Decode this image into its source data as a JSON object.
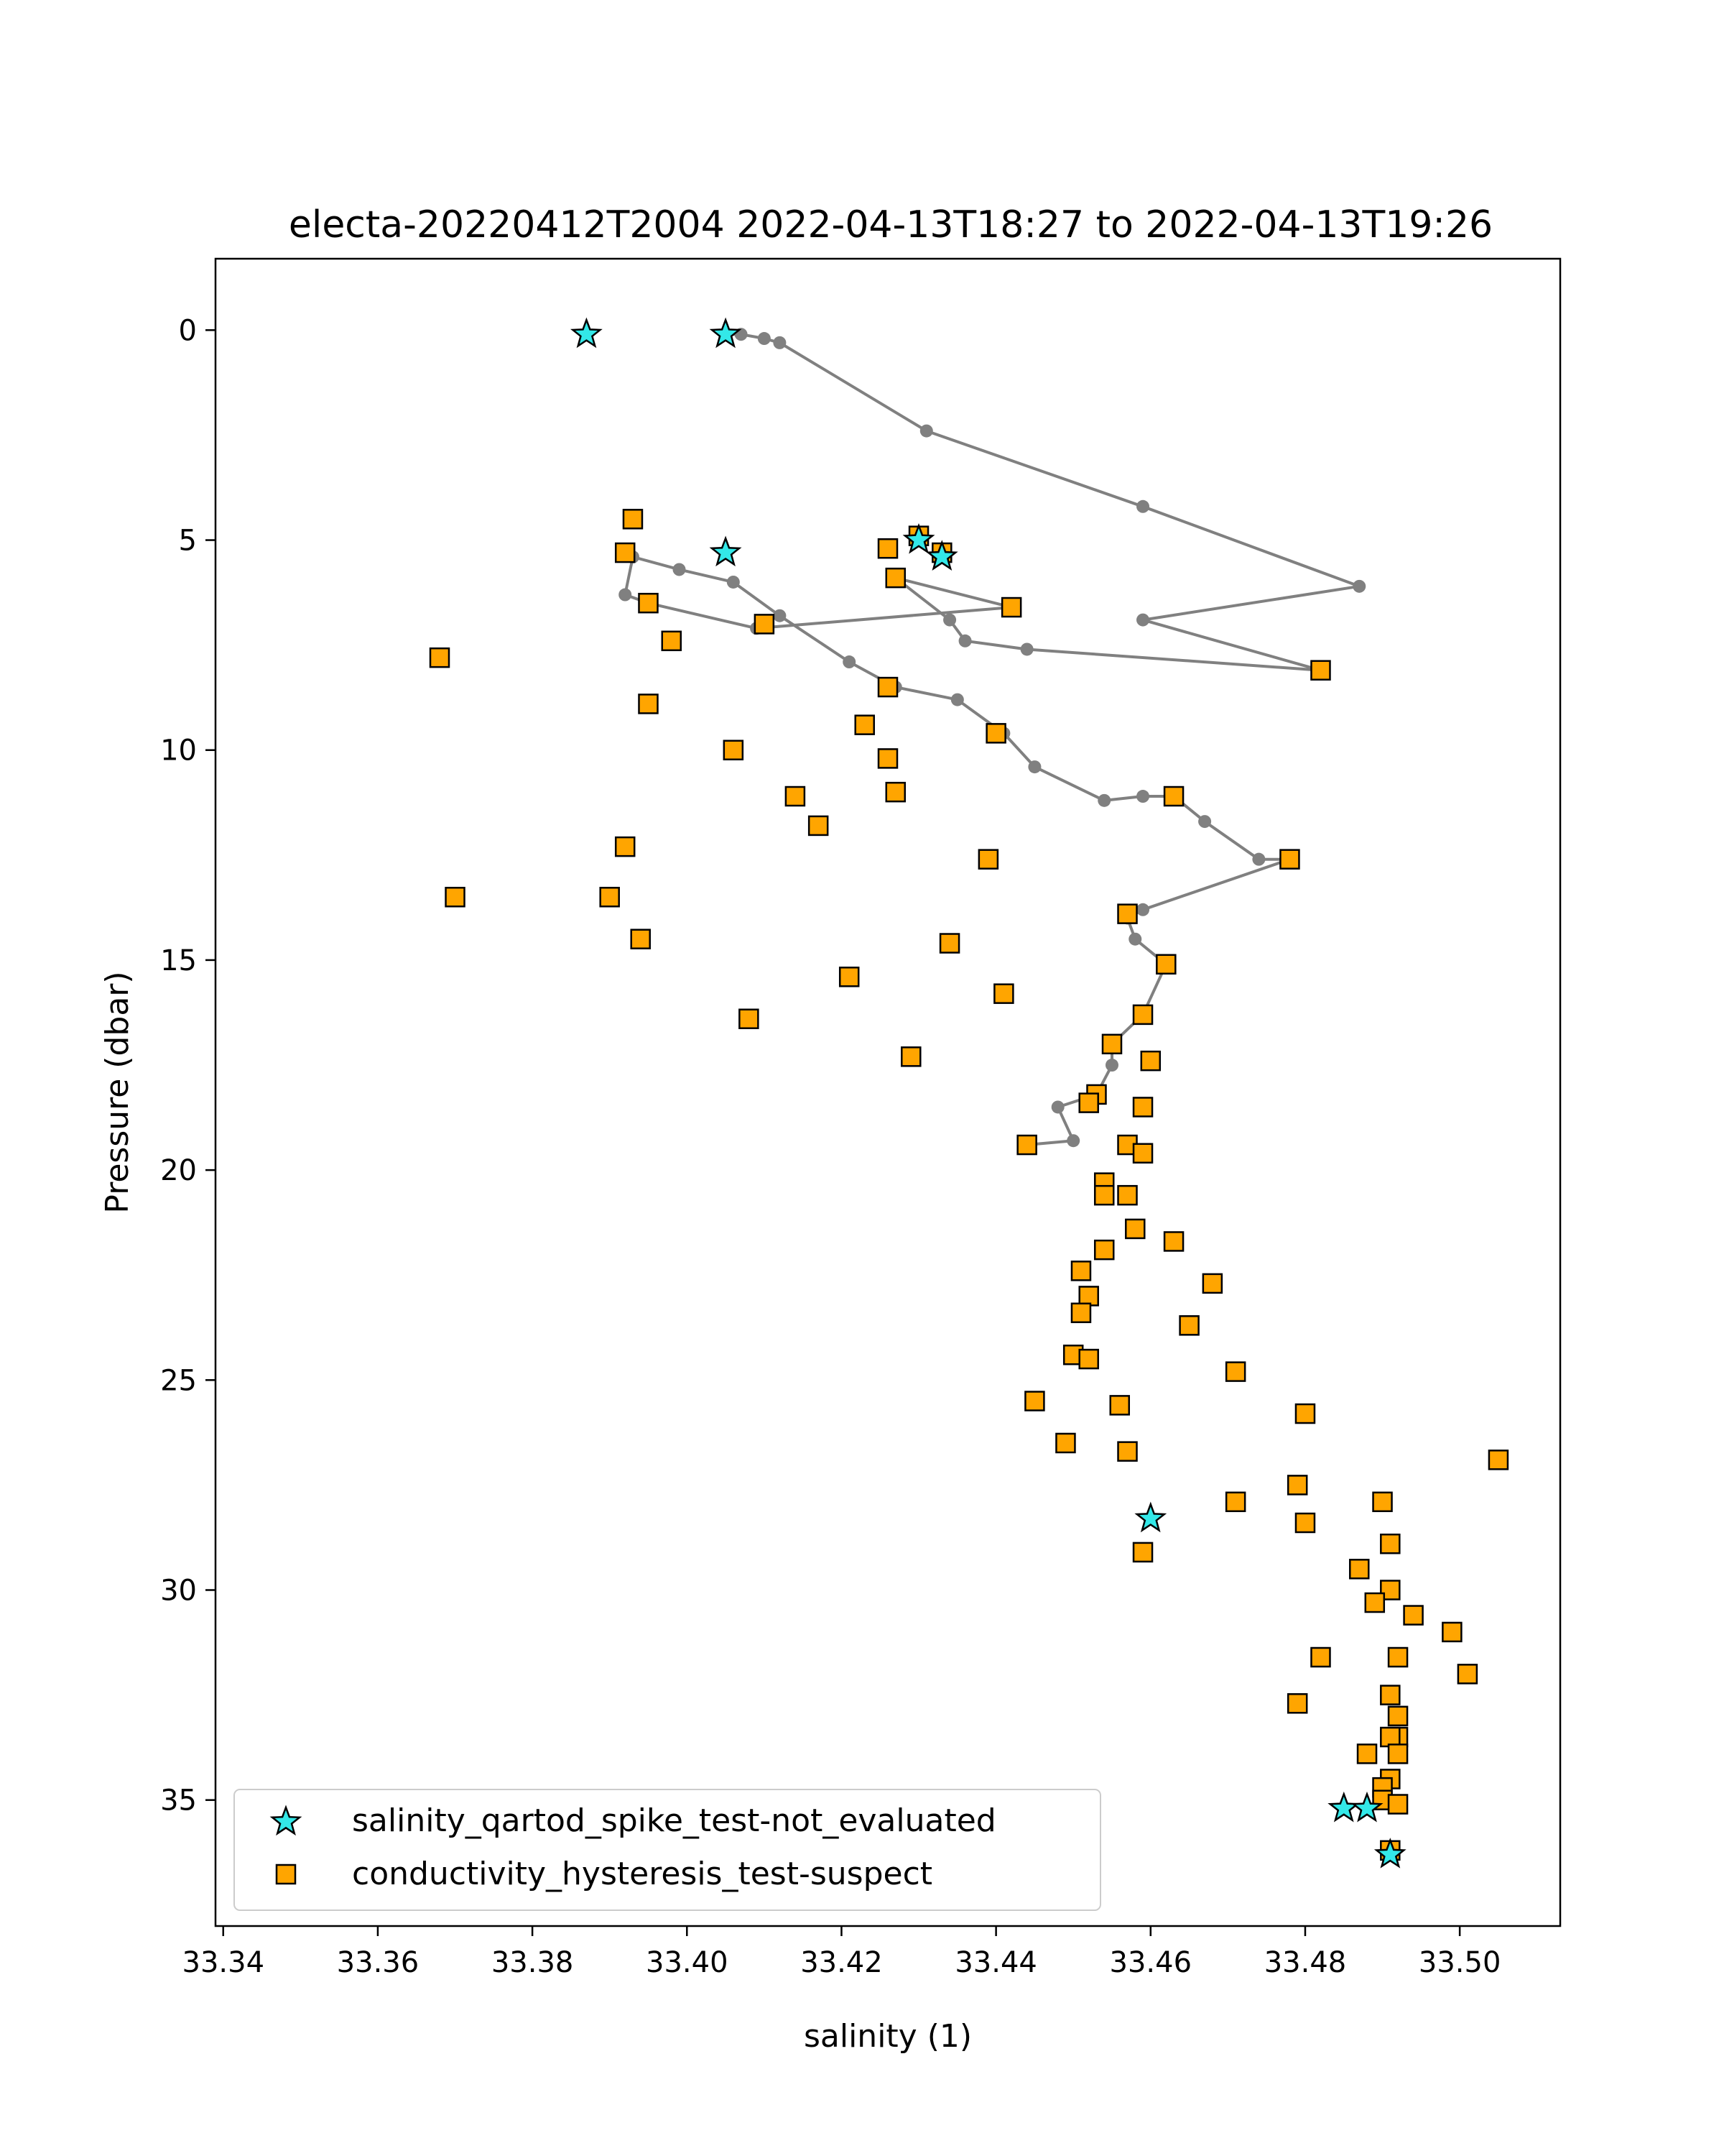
{
  "chart_data": {
    "type": "line",
    "title": "electa-20220412T2004 2022-04-13T18:27 to 2022-04-13T19:26",
    "xlabel": "salinity (1)",
    "ylabel": "Pressure (dbar)",
    "xlim": [
      33.339,
      33.513
    ],
    "ylim": [
      38.0,
      -1.7
    ],
    "y_inverted": true,
    "x_ticks": [
      "33.34",
      "33.36",
      "33.38",
      "33.40",
      "33.42",
      "33.44",
      "33.46",
      "33.48",
      "33.50"
    ],
    "x_tick_values": [
      33.34,
      33.36,
      33.38,
      33.4,
      33.42,
      33.44,
      33.46,
      33.48,
      33.5
    ],
    "y_ticks": [
      "0",
      "5",
      "10",
      "15",
      "20",
      "25",
      "30",
      "35"
    ],
    "y_tick_values": [
      0,
      5,
      10,
      15,
      20,
      25,
      30,
      35
    ],
    "grid": false,
    "legend_position": "lower-left",
    "colors": {
      "profile_line": "#808080",
      "star_marker": "#33e8e8",
      "square_marker": "#ffa500",
      "marker_edge": "#000000"
    },
    "profile": [
      [
        33.405,
        0.1
      ],
      [
        33.407,
        0.1
      ],
      [
        33.41,
        0.2
      ],
      [
        33.412,
        0.3
      ],
      [
        33.431,
        2.4
      ],
      [
        33.459,
        4.2
      ],
      [
        33.487,
        6.1
      ],
      [
        33.459,
        6.9
      ],
      [
        33.482,
        8.1
      ],
      [
        33.444,
        7.6
      ],
      [
        33.436,
        7.4
      ],
      [
        33.434,
        6.9
      ],
      [
        33.427,
        5.9
      ],
      [
        33.442,
        6.6
      ],
      [
        33.409,
        7.1
      ],
      [
        33.395,
        6.5
      ],
      [
        33.392,
        6.3
      ],
      [
        33.393,
        5.4
      ],
      [
        33.399,
        5.7
      ],
      [
        33.406,
        6.0
      ],
      [
        33.412,
        6.8
      ],
      [
        33.421,
        7.9
      ],
      [
        33.427,
        8.5
      ],
      [
        33.435,
        8.8
      ],
      [
        33.441,
        9.6
      ],
      [
        33.445,
        10.4
      ],
      [
        33.454,
        11.2
      ],
      [
        33.459,
        11.1
      ],
      [
        33.463,
        11.1
      ],
      [
        33.467,
        11.7
      ],
      [
        33.474,
        12.6
      ],
      [
        33.478,
        12.6
      ],
      [
        33.459,
        13.8
      ],
      [
        33.457,
        14.0
      ],
      [
        33.458,
        14.5
      ],
      [
        33.462,
        15.1
      ],
      [
        33.459,
        16.3
      ],
      [
        33.455,
        17.0
      ],
      [
        33.455,
        17.5
      ],
      [
        33.453,
        18.2
      ],
      [
        33.448,
        18.5
      ],
      [
        33.45,
        19.3
      ],
      [
        33.444,
        19.4
      ]
    ],
    "stars": [
      [
        33.387,
        0.1
      ],
      [
        33.405,
        0.1
      ],
      [
        33.43,
        5.0
      ],
      [
        33.433,
        5.4
      ],
      [
        33.405,
        5.3
      ],
      [
        33.46,
        28.3
      ],
      [
        33.485,
        35.2
      ],
      [
        33.488,
        35.2
      ],
      [
        33.491,
        36.3
      ]
    ],
    "squares": [
      [
        33.393,
        4.5
      ],
      [
        33.43,
        4.9
      ],
      [
        33.433,
        5.3
      ],
      [
        33.426,
        5.2
      ],
      [
        33.392,
        5.3
      ],
      [
        33.427,
        5.9
      ],
      [
        33.395,
        6.5
      ],
      [
        33.442,
        6.6
      ],
      [
        33.41,
        7.0
      ],
      [
        33.398,
        7.4
      ],
      [
        33.368,
        7.8
      ],
      [
        33.482,
        8.1
      ],
      [
        33.426,
        8.5
      ],
      [
        33.395,
        8.9
      ],
      [
        33.423,
        9.4
      ],
      [
        33.44,
        9.6
      ],
      [
        33.406,
        10.0
      ],
      [
        33.426,
        10.2
      ],
      [
        33.427,
        11.0
      ],
      [
        33.414,
        11.1
      ],
      [
        33.463,
        11.1
      ],
      [
        33.417,
        11.8
      ],
      [
        33.392,
        12.3
      ],
      [
        33.478,
        12.6
      ],
      [
        33.439,
        12.6
      ],
      [
        33.37,
        13.5
      ],
      [
        33.39,
        13.5
      ],
      [
        33.457,
        13.9
      ],
      [
        33.394,
        14.5
      ],
      [
        33.434,
        14.6
      ],
      [
        33.462,
        15.1
      ],
      [
        33.421,
        15.4
      ],
      [
        33.441,
        15.8
      ],
      [
        33.459,
        16.3
      ],
      [
        33.408,
        16.4
      ],
      [
        33.455,
        17.0
      ],
      [
        33.429,
        17.3
      ],
      [
        33.46,
        17.4
      ],
      [
        33.453,
        18.2
      ],
      [
        33.452,
        18.4
      ],
      [
        33.459,
        18.5
      ],
      [
        33.444,
        19.4
      ],
      [
        33.457,
        19.4
      ],
      [
        33.459,
        19.6
      ],
      [
        33.454,
        20.3
      ],
      [
        33.457,
        20.6
      ],
      [
        33.454,
        20.6
      ],
      [
        33.458,
        21.4
      ],
      [
        33.463,
        21.7
      ],
      [
        33.454,
        21.9
      ],
      [
        33.451,
        22.4
      ],
      [
        33.468,
        22.7
      ],
      [
        33.452,
        23.0
      ],
      [
        33.451,
        23.4
      ],
      [
        33.465,
        23.7
      ],
      [
        33.45,
        24.4
      ],
      [
        33.452,
        24.5
      ],
      [
        33.471,
        24.8
      ],
      [
        33.445,
        25.5
      ],
      [
        33.456,
        25.6
      ],
      [
        33.48,
        25.8
      ],
      [
        33.449,
        26.5
      ],
      [
        33.457,
        26.7
      ],
      [
        33.505,
        26.9
      ],
      [
        33.479,
        27.5
      ],
      [
        33.49,
        27.9
      ],
      [
        33.471,
        27.9
      ],
      [
        33.48,
        28.4
      ],
      [
        33.491,
        28.9
      ],
      [
        33.459,
        29.1
      ],
      [
        33.487,
        29.5
      ],
      [
        33.491,
        30.0
      ],
      [
        33.489,
        30.3
      ],
      [
        33.494,
        30.6
      ],
      [
        33.499,
        31.0
      ],
      [
        33.482,
        31.6
      ],
      [
        33.492,
        31.6
      ],
      [
        33.501,
        32.0
      ],
      [
        33.491,
        32.5
      ],
      [
        33.479,
        32.7
      ],
      [
        33.492,
        33.0
      ],
      [
        33.492,
        33.5
      ],
      [
        33.491,
        33.5
      ],
      [
        33.488,
        33.9
      ],
      [
        33.492,
        33.9
      ],
      [
        33.491,
        34.5
      ],
      [
        33.49,
        34.7
      ],
      [
        33.49,
        35.0
      ],
      [
        33.492,
        35.1
      ],
      [
        33.491,
        36.2
      ]
    ],
    "series": [
      {
        "name": "salinity_qartod_spike_test-not_evaluated",
        "marker": "star"
      },
      {
        "name": "conductivity_hysteresis_test-suspect",
        "marker": "square"
      }
    ]
  }
}
